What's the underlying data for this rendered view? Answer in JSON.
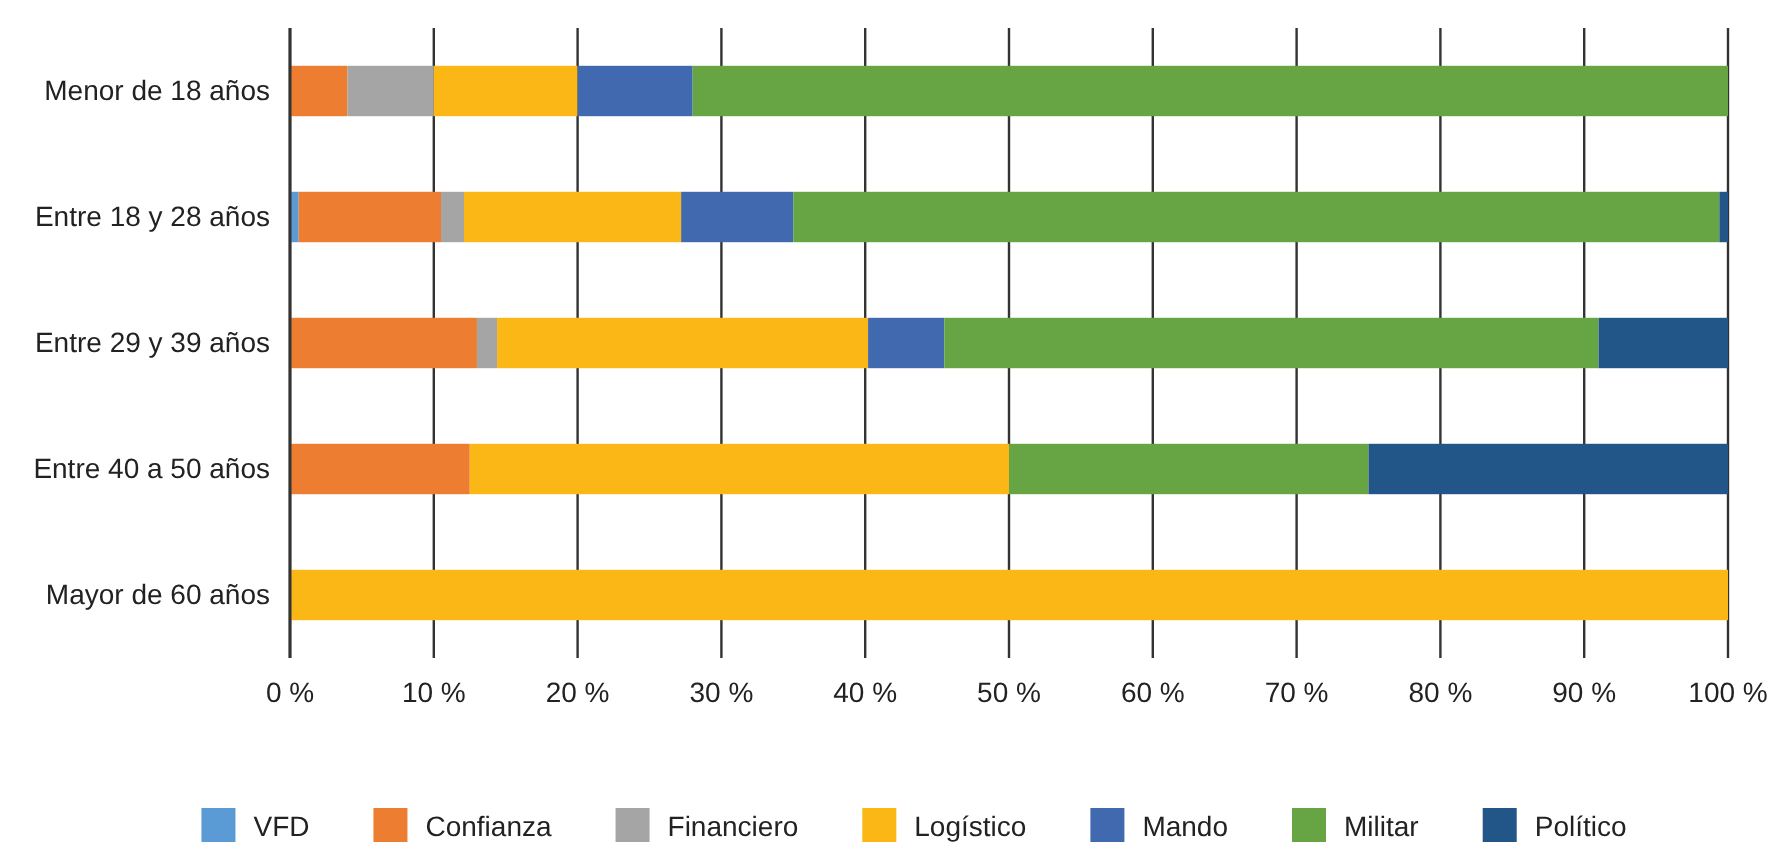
{
  "chart_data": {
    "type": "bar",
    "orientation": "horizontal",
    "stacked": true,
    "categories": [
      "Menor de 18 años",
      "Entre 18 y 28 años",
      "Entre 29 y 39 años",
      "Entre 40 a 50 años",
      "Mayor de 60 años"
    ],
    "series": [
      {
        "name": "VFD",
        "color": "#5b9bd5",
        "values": [
          0,
          0.6,
          0,
          0,
          0
        ]
      },
      {
        "name": "Confianza",
        "color": "#ed7d31",
        "values": [
          4,
          9.9,
          13,
          12.5,
          0
        ]
      },
      {
        "name": "Financiero",
        "color": "#a5a5a5",
        "values": [
          6,
          1.6,
          1.4,
          0,
          0
        ]
      },
      {
        "name": "Logístico",
        "color": "#fbb715",
        "values": [
          10,
          15.1,
          25.8,
          37.5,
          100
        ]
      },
      {
        "name": "Mando",
        "color": "#4169b0",
        "values": [
          8,
          7.8,
          5.3,
          0,
          0
        ]
      },
      {
        "name": "Militar",
        "color": "#67a443",
        "values": [
          72,
          64.4,
          45.5,
          25,
          0
        ]
      },
      {
        "name": "Político",
        "color": "#225588",
        "values": [
          0,
          0.6,
          9,
          25,
          0
        ]
      }
    ],
    "xlim": [
      0,
      100
    ],
    "xticks": [
      {
        "value": 0,
        "label": "0 %"
      },
      {
        "value": 10,
        "label": "10 %"
      },
      {
        "value": 20,
        "label": "20 %"
      },
      {
        "value": 30,
        "label": "30 %"
      },
      {
        "value": 40,
        "label": "40 %"
      },
      {
        "value": 50,
        "label": "50 %"
      },
      {
        "value": 60,
        "label": "60 %"
      },
      {
        "value": 70,
        "label": "70 %"
      },
      {
        "value": 80,
        "label": "80 %"
      },
      {
        "value": 90,
        "label": "90 %"
      },
      {
        "value": 100,
        "label": "100 %"
      }
    ],
    "grid": "x",
    "legend": "bottom"
  }
}
